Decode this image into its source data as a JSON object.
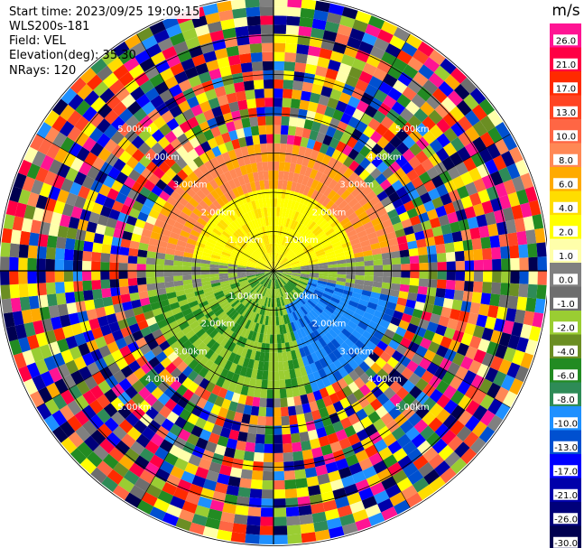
{
  "header": {
    "start_time": "Start time: 2023/09/25 19:09:15",
    "instrument": "WLS200s-181",
    "field": "Field: VEL",
    "elevation": "Elevation(deg): 35.30",
    "nrays": "NRays: 120"
  },
  "colorbar": {
    "unit": "m/s",
    "ticks": [
      "26.0",
      "21.0",
      "17.0",
      "13.0",
      "10.0",
      "8.0",
      "6.0",
      "4.0",
      "2.0",
      "1.0",
      "0.0",
      "-1.0",
      "-2.0",
      "-4.0",
      "-6.0",
      "-8.0",
      "-10.0",
      "-13.0",
      "-17.0",
      "-21.0",
      "-26.0",
      "-30.0"
    ],
    "colors": [
      "#ff1493",
      "#ff0044",
      "#ff2a00",
      "#ff4422",
      "#ff6644",
      "#ff8855",
      "#ffaa00",
      "#ffdd00",
      "#ffff00",
      "#ffffaa",
      "#808080",
      "#6e6e6e",
      "#9acd32",
      "#6b8e23",
      "#228b22",
      "#2e8b57",
      "#1e90ff",
      "#0050d0",
      "#0000ff",
      "#0000aa",
      "#00007a",
      "#000050"
    ]
  },
  "range_rings": {
    "labels": [
      "1.00km",
      "2.00km",
      "3.00km",
      "4.00km",
      "5.00km"
    ]
  }
}
